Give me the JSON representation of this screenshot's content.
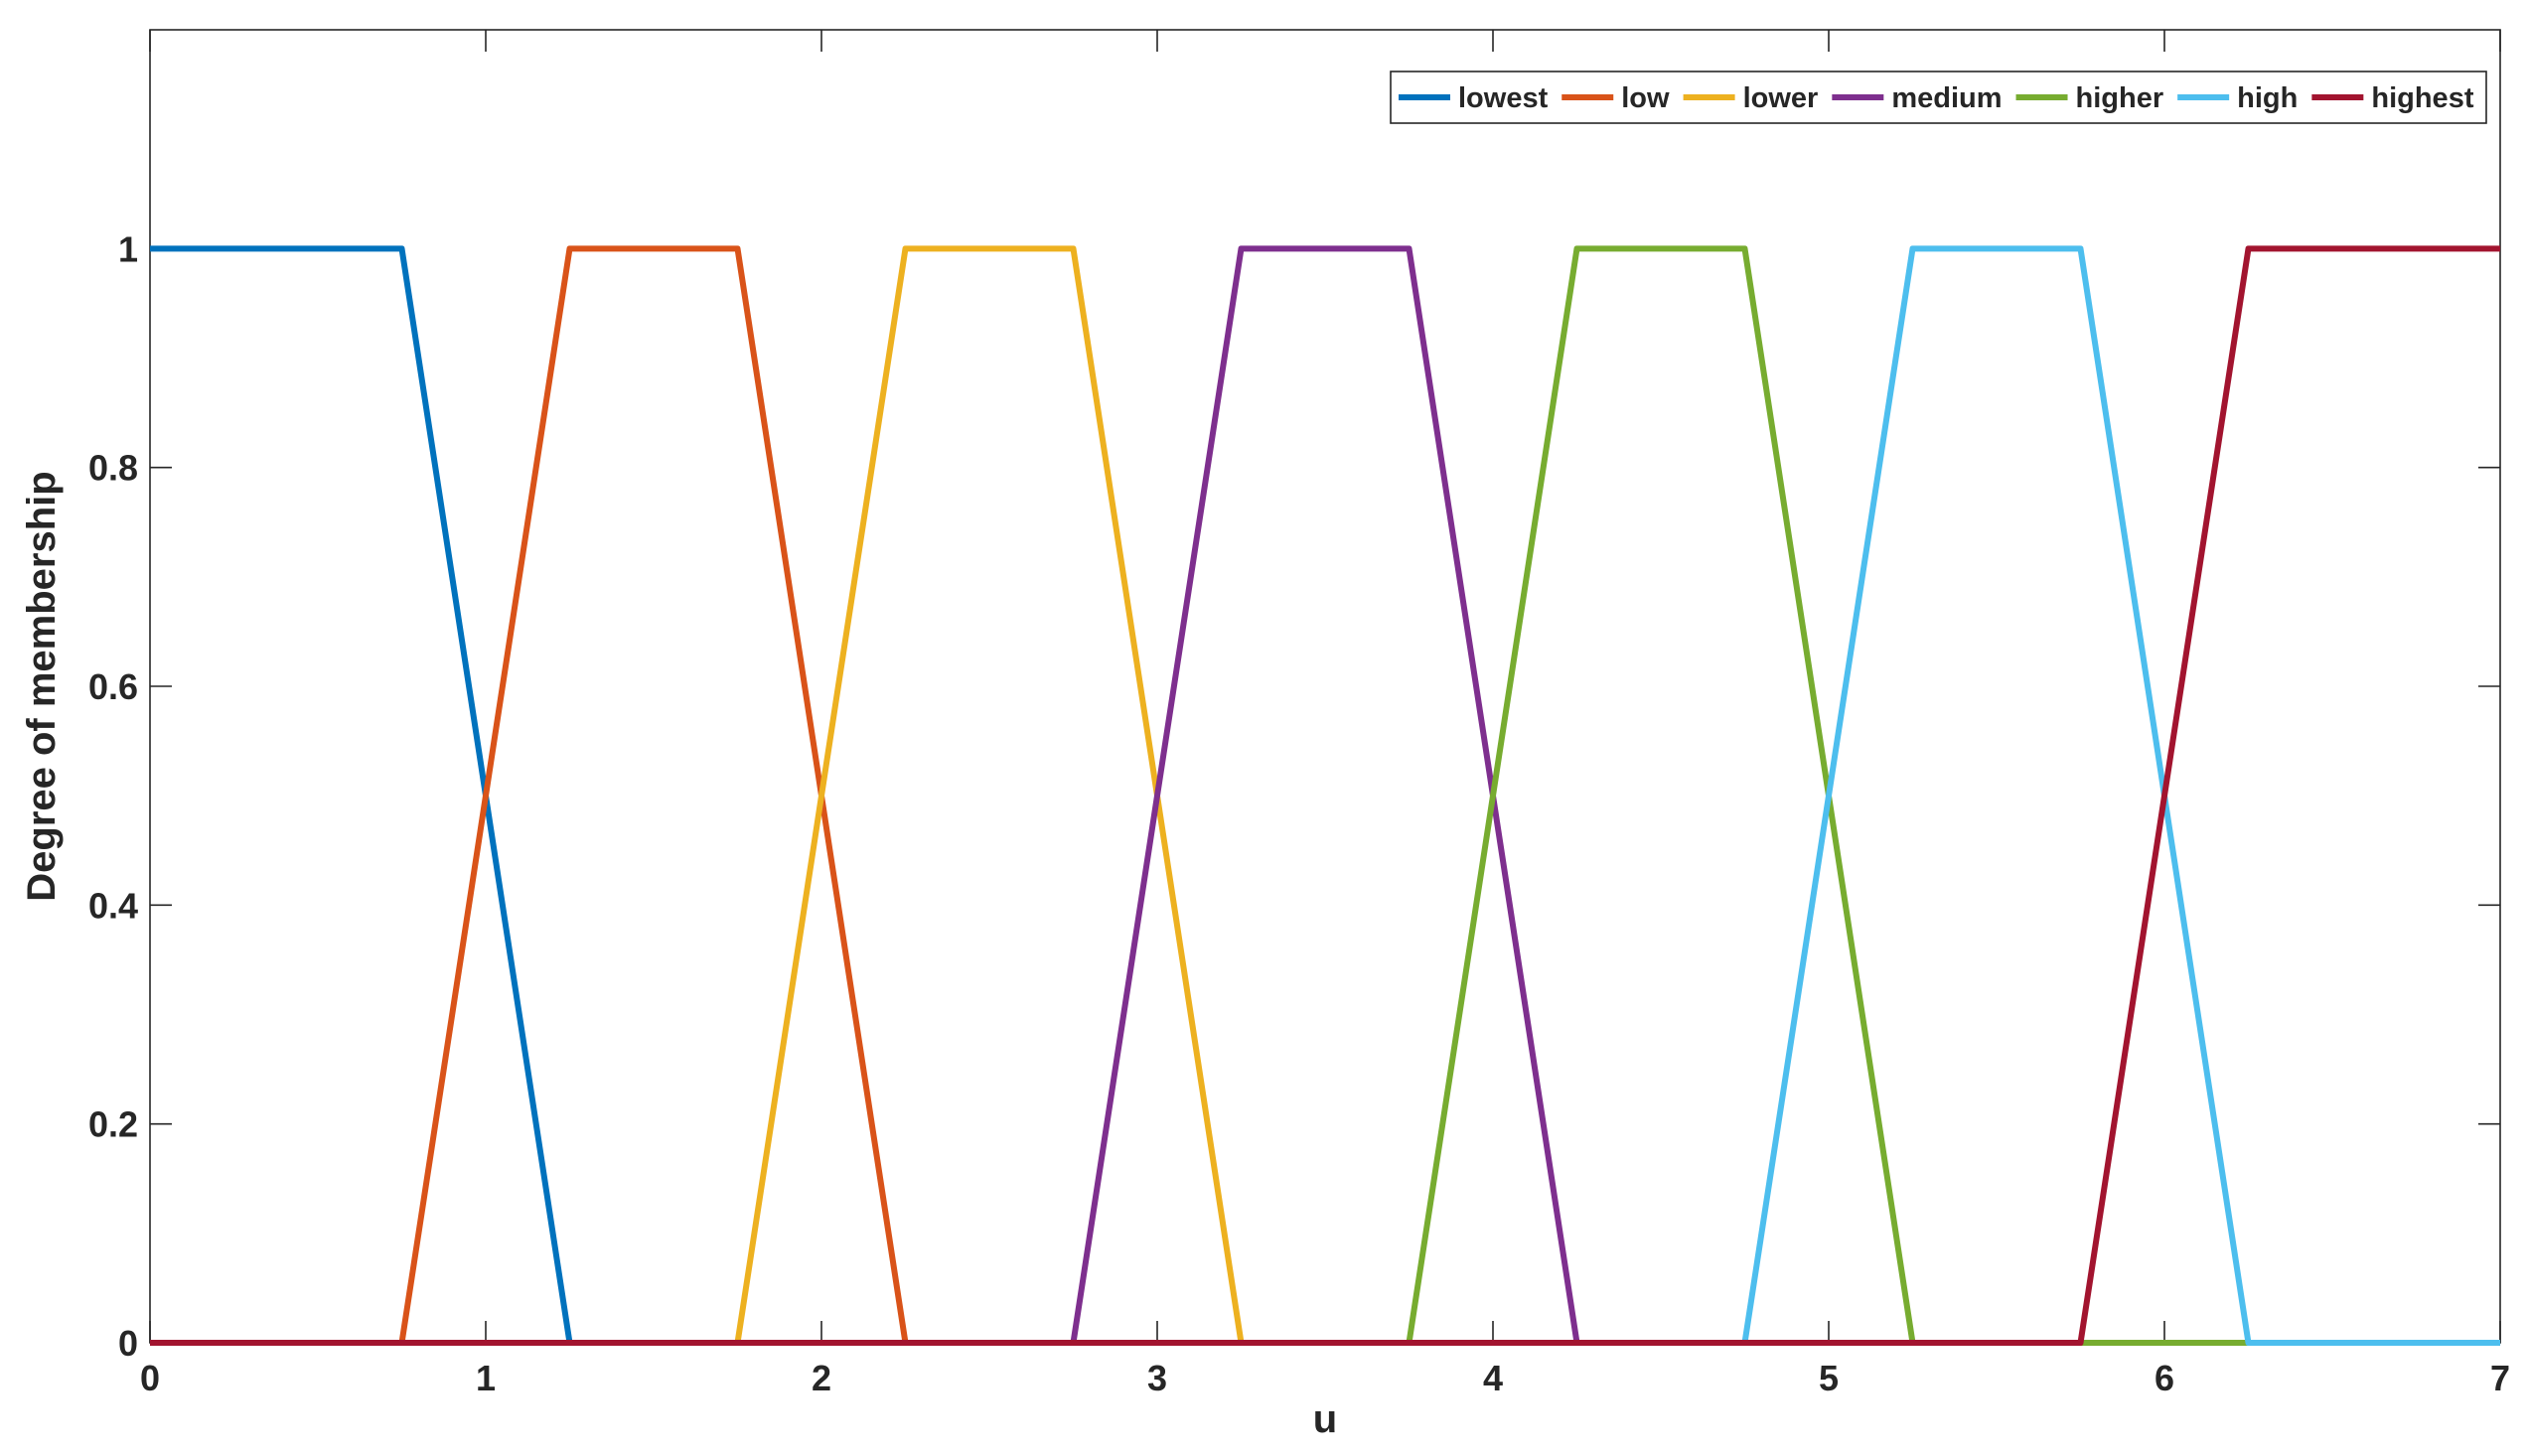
{
  "chart_data": {
    "type": "line",
    "title": "",
    "xlabel": "u",
    "ylabel": "Degree of membership",
    "xlim": [
      0,
      7
    ],
    "ylim": [
      0,
      1.2
    ],
    "xticks": [
      0,
      1,
      2,
      3,
      4,
      5,
      6,
      7
    ],
    "yticks": [
      0,
      0.2,
      0.4,
      0.6,
      0.8,
      1
    ],
    "xtick_labels": [
      "0",
      "1",
      "2",
      "3",
      "4",
      "5",
      "6",
      "7"
    ],
    "ytick_labels": [
      "0",
      "0.2",
      "0.4",
      "0.6",
      "0.8",
      "1"
    ],
    "grid": false,
    "legend_position": "top-right",
    "legend_orientation": "horizontal",
    "series": [
      {
        "name": "lowest",
        "color": "#0072BD",
        "points": [
          [
            0,
            1
          ],
          [
            0.75,
            1
          ],
          [
            1.25,
            0
          ],
          [
            7,
            0
          ]
        ]
      },
      {
        "name": "low",
        "color": "#D95319",
        "points": [
          [
            0,
            0
          ],
          [
            0.75,
            0
          ],
          [
            1.25,
            1
          ],
          [
            1.75,
            1
          ],
          [
            2.25,
            0
          ],
          [
            7,
            0
          ]
        ]
      },
      {
        "name": "lower",
        "color": "#EDB120",
        "points": [
          [
            0,
            0
          ],
          [
            1.75,
            0
          ],
          [
            2.25,
            1
          ],
          [
            2.75,
            1
          ],
          [
            3.25,
            0
          ],
          [
            7,
            0
          ]
        ]
      },
      {
        "name": "medium",
        "color": "#7E2F8E",
        "points": [
          [
            0,
            0
          ],
          [
            2.75,
            0
          ],
          [
            3.25,
            1
          ],
          [
            3.75,
            1
          ],
          [
            4.25,
            0
          ],
          [
            7,
            0
          ]
        ]
      },
      {
        "name": "higher",
        "color": "#77AC30",
        "points": [
          [
            0,
            0
          ],
          [
            3.75,
            0
          ],
          [
            4.25,
            1
          ],
          [
            4.75,
            1
          ],
          [
            5.25,
            0
          ],
          [
            7,
            0
          ]
        ]
      },
      {
        "name": "high",
        "color": "#4DBEEE",
        "points": [
          [
            0,
            0
          ],
          [
            4.75,
            0
          ],
          [
            5.25,
            1
          ],
          [
            5.75,
            1
          ],
          [
            6.25,
            0
          ],
          [
            7,
            0
          ]
        ]
      },
      {
        "name": "highest",
        "color": "#A2142F",
        "points": [
          [
            0,
            0
          ],
          [
            5.75,
            0
          ],
          [
            6.25,
            1
          ],
          [
            7,
            1
          ]
        ]
      }
    ]
  }
}
